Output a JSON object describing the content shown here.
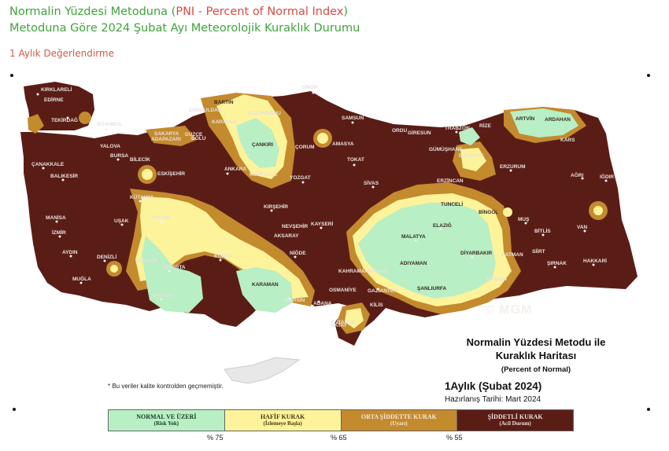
{
  "header": {
    "line1_a": "Normalin Yüzdesi Metoduna (",
    "line1_b": "PNI - Percent of Normal Index",
    "line1_c": ")",
    "line2": "Metoduna Göre 2024 Şubat Ayı Meteorolojik Kuraklık Durumu",
    "line3": "1 Aylık Değerlendirme"
  },
  "map": {
    "colors": {
      "normal": "#b8efc5",
      "hafif": "#fdf39a",
      "orta": "#c48a2e",
      "siddetli": "#5a1d16"
    },
    "logo": "© MGM",
    "note": "* Bu veriler kalite kontrolden geçmemiştir.",
    "title_1": "Normalin Yüzdesi Metodu ile",
    "title_2": "Kuraklık Haritası",
    "subtitle": "(Percent of Normal)",
    "period": "1Aylık (Şubat 2024)",
    "prepared": "Hazırlanış Tarihi: Mart 2024",
    "cities": [
      "KIRKLARELİ",
      "EDİRNE",
      "TEKİRDAĞ",
      "İSTANBUL",
      "ÇANAKKALE",
      "BALIKESİR",
      "BURSA",
      "YALOVA",
      "BİLECİK",
      "SAKARYA",
      "ADAPAZARI",
      "DÜZCE",
      "BOLU",
      "ZONGULDAK",
      "BARTIN",
      "KARABÜK",
      "KASTAMONU",
      "SİNOP",
      "SAMSUN",
      "ÇANKIRI",
      "ORDU",
      "GİRESUN",
      "TRABZON",
      "RİZE",
      "ARTVİN",
      "ARDAHAN",
      "KARS",
      "IĞDIR",
      "AĞRI",
      "ERZURUM",
      "BAYBURT",
      "GÜMÜŞHANE",
      "ERZİNCAN",
      "TUNCELİ",
      "BİNGÖL",
      "MUŞ",
      "BİTLİS",
      "VAN",
      "HAKKARİ",
      "ŞIRNAK",
      "SİİRT",
      "BATMAN",
      "MARDİN",
      "DİYARBAKIR",
      "ELAZIĞ",
      "MALATYA",
      "ADIYAMAN",
      "ŞANLIURFA",
      "GAZİANTEP",
      "KİLİS",
      "OSMANİYE",
      "HATAY",
      "ANTAKYA",
      "KAHRAMANMARAŞ",
      "ADANA",
      "MERSİN",
      "KARAMAN",
      "KONYA",
      "NİĞDE",
      "AKSARAY",
      "NEVŞEHİR",
      "KAYSERİ",
      "KIRŞEHİR",
      "YOZGAT",
      "SİVAS",
      "TOKAT",
      "AMASYA",
      "ÇORUM",
      "KIRIKKALE",
      "ANKARA",
      "ESKİŞEHİR",
      "KÜTAHYA",
      "AFYON",
      "UŞAK",
      "MANİSA",
      "İZMİR",
      "AYDIN",
      "DENİZLİ",
      "MUĞLA",
      "BURDUR",
      "ISPARTA",
      "ANTALYA"
    ]
  },
  "legend": [
    {
      "name": "NORMAL VE ÜZERİ",
      "sub": "(Risk Yok)",
      "color": "#b8efc5"
    },
    {
      "name": "HAFİF KURAK",
      "sub": "(İzlemeye Başla)",
      "color": "#fdf39a"
    },
    {
      "name": "ORTA ŞİDDETTE KURAK",
      "sub": "(Uyarı)",
      "color": "#c48a2e"
    },
    {
      "name": "ŞİDDETLİ KURAK",
      "sub": "(Acil Durum)",
      "color": "#5a1d16"
    }
  ],
  "thresholds": [
    "% 75",
    "% 65",
    "% 55"
  ]
}
